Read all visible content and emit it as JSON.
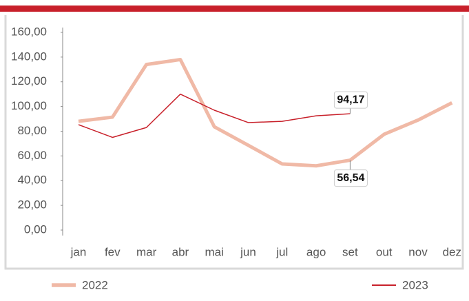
{
  "chart_data": {
    "type": "line",
    "categories": [
      "jan",
      "fev",
      "mar",
      "abr",
      "mai",
      "jun",
      "jul",
      "ago",
      "set",
      "out",
      "nov",
      "dez"
    ],
    "series": [
      {
        "name": "2022",
        "color": "#f0b9a6",
        "values": [
          88,
          91.4,
          134,
          138,
          83.6,
          68.6,
          53.5,
          52,
          56.54,
          77.5,
          89,
          103
        ],
        "value_labels": [
          null,
          null,
          null,
          null,
          null,
          null,
          null,
          null,
          "56,54",
          null,
          null,
          null
        ]
      },
      {
        "name": "2023",
        "color": "#c8202a",
        "values": [
          85.3,
          75,
          83,
          110,
          97,
          87,
          88,
          92.5,
          94.17,
          null,
          null,
          null
        ],
        "value_labels": [
          null,
          null,
          null,
          null,
          null,
          null,
          null,
          null,
          "94,17",
          null,
          null,
          null
        ]
      }
    ],
    "ylim": [
      0,
      160
    ],
    "yticks": [
      {
        "value": 0,
        "label": "0,00"
      },
      {
        "value": 20,
        "label": "20,00"
      },
      {
        "value": 40,
        "label": "40,00"
      },
      {
        "value": 60,
        "label": "60,00"
      },
      {
        "value": 80,
        "label": "80,00"
      },
      {
        "value": 100,
        "label": "100,00"
      },
      {
        "value": 120,
        "label": "120,00"
      },
      {
        "value": 140,
        "label": "140,00"
      },
      {
        "value": 160,
        "label": "160,00"
      }
    ],
    "grid": false
  }
}
